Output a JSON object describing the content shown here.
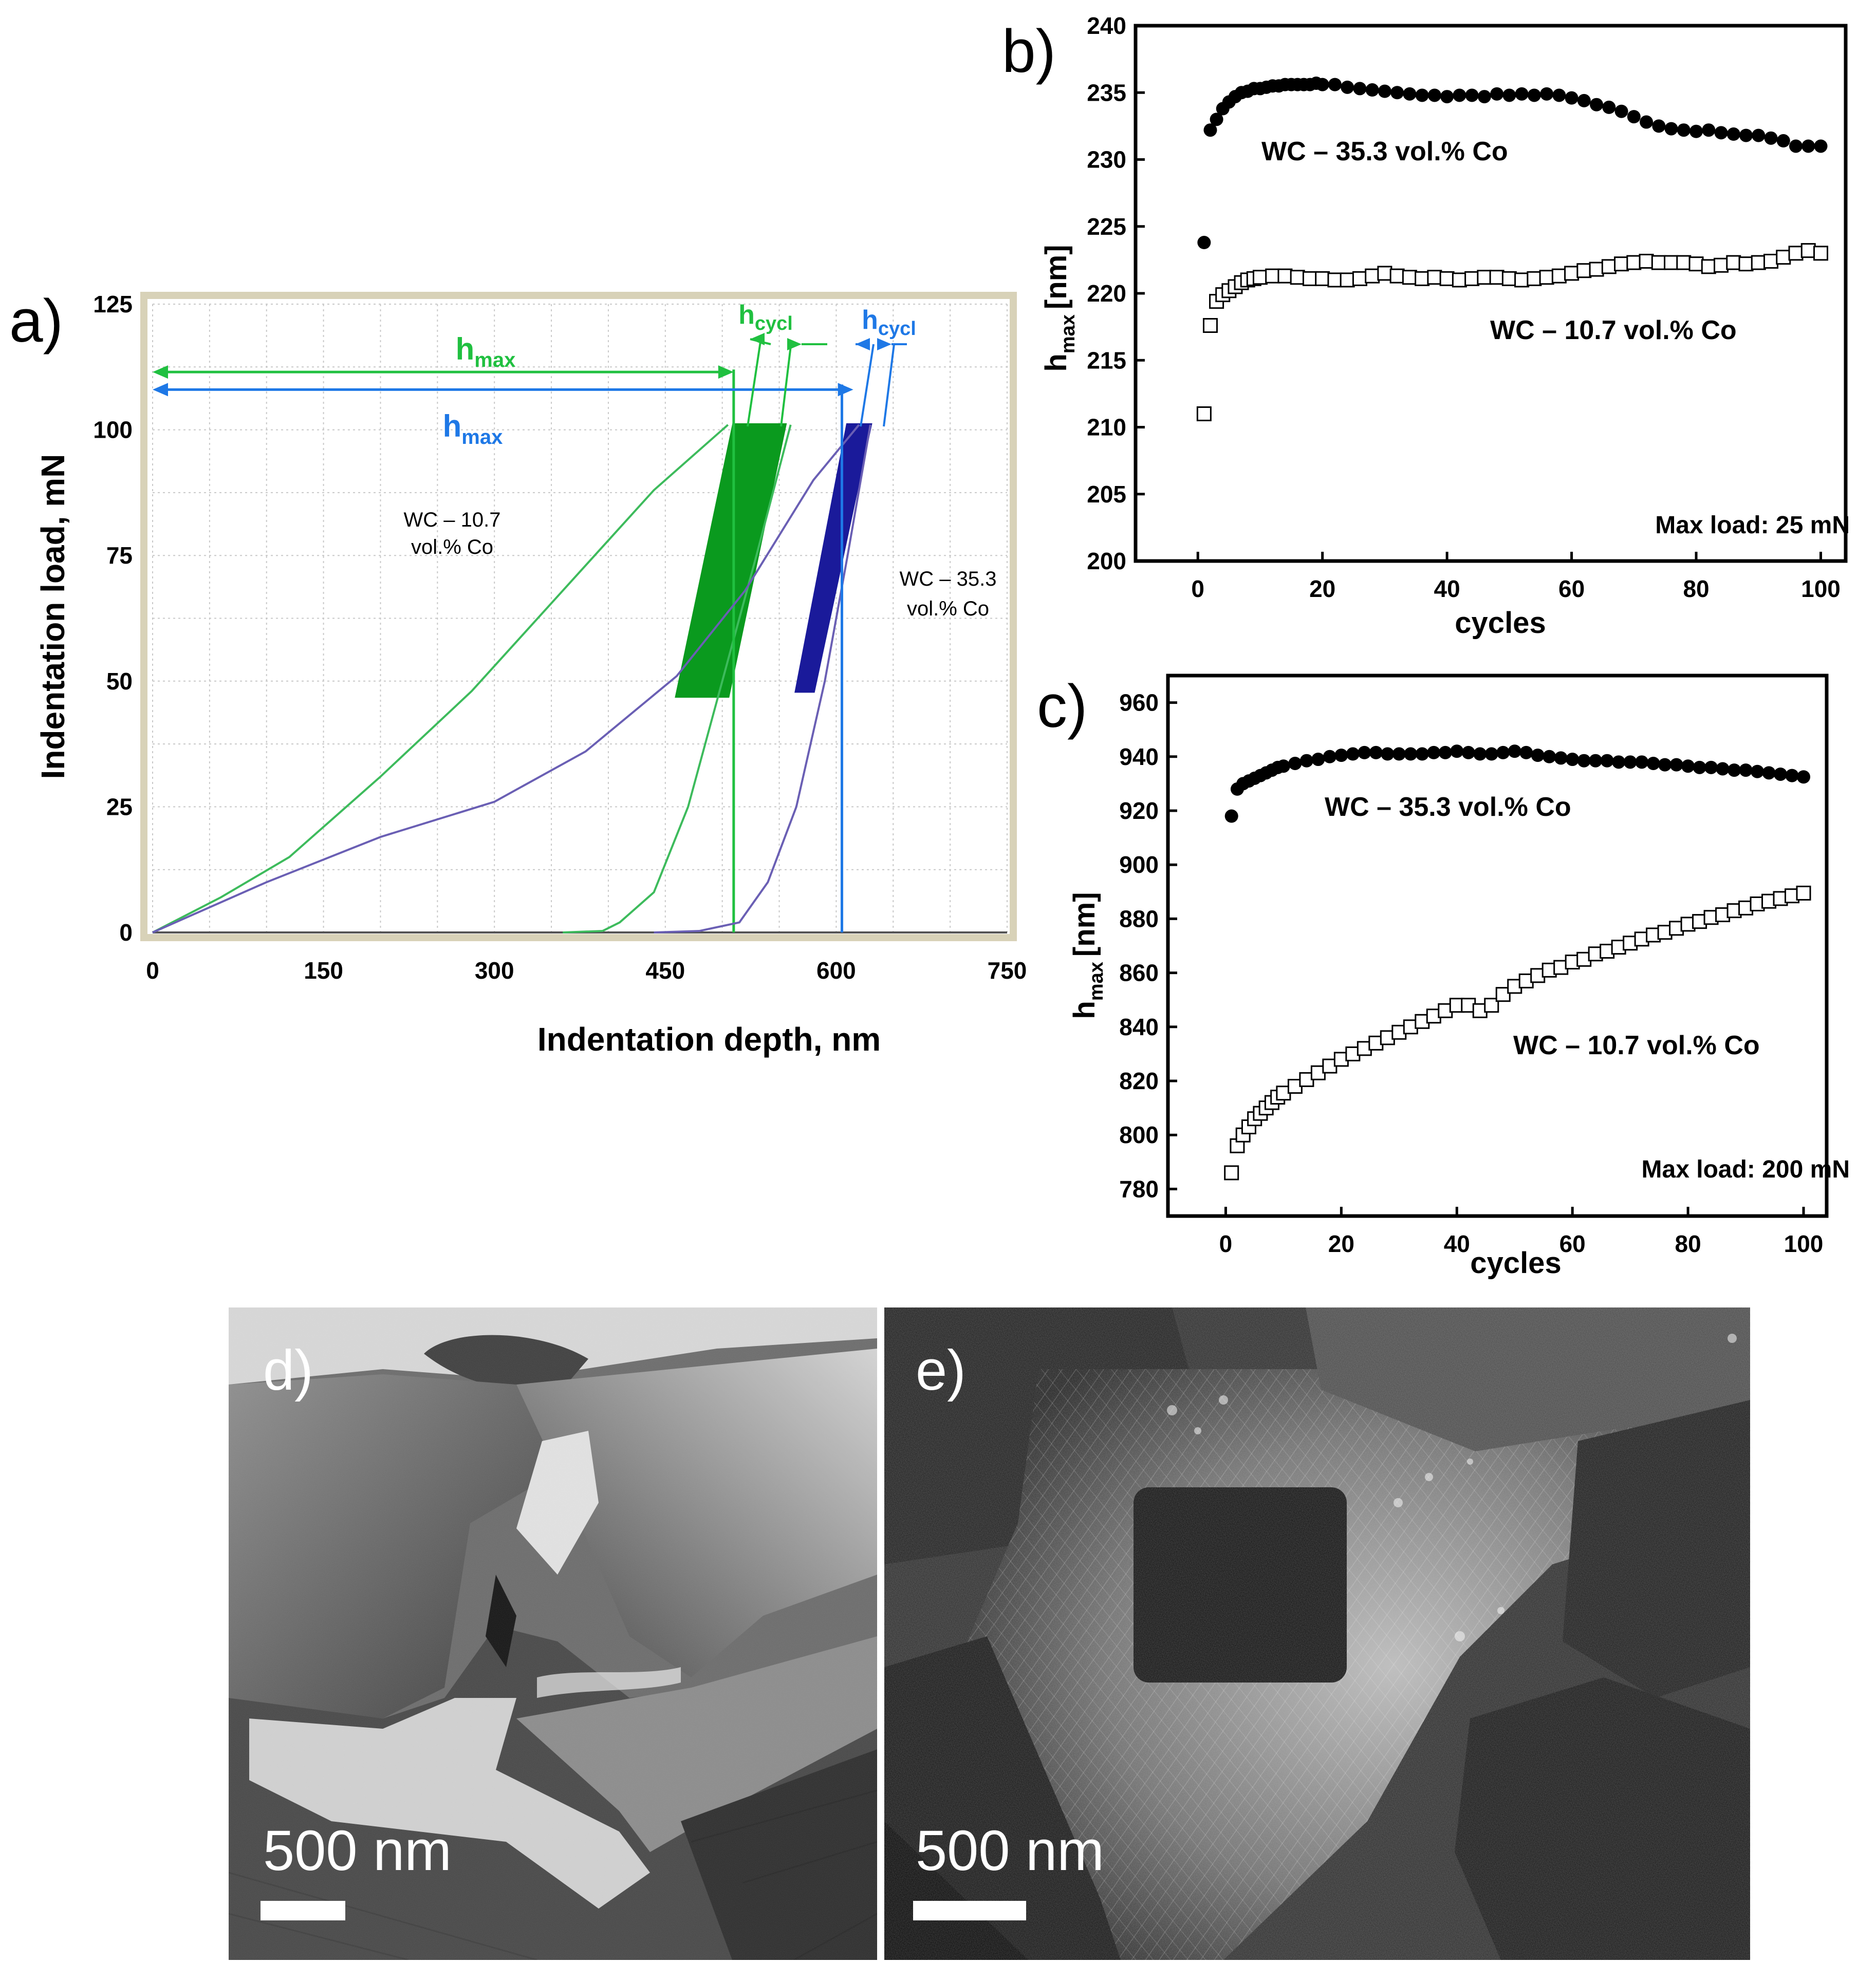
{
  "chart_data": [
    {
      "panel": "a",
      "panel_label": "a)",
      "type": "line",
      "xlabel": "Indentation depth, nm",
      "ylabel": "Indentation load, mN",
      "xlim": [
        0,
        750
      ],
      "ylim": [
        0,
        125
      ],
      "xticks": [
        "0",
        "150",
        "300",
        "450",
        "600",
        "750"
      ],
      "yticks": [
        "0",
        "25",
        "50",
        "75",
        "100",
        "125"
      ],
      "grid": true,
      "series": [
        {
          "name": "WC – 10.7 vol.% Co",
          "label_line1": "WC – 10.7",
          "label_line2": "vol.% Co",
          "color": "#3dbb5c",
          "band_color": "#0a9a1e",
          "loading": [
            [
              0,
              0
            ],
            [
              60,
              7
            ],
            [
              120,
              15
            ],
            [
              200,
              31
            ],
            [
              280,
              48
            ],
            [
              360,
              68
            ],
            [
              440,
              88
            ],
            [
              505,
              101
            ]
          ],
          "unloading": [
            [
              560,
              101
            ],
            [
              530,
              75
            ],
            [
              500,
              50
            ],
            [
              470,
              25
            ],
            [
              440,
              8
            ],
            [
              410,
              2
            ],
            [
              395,
              0.3
            ]
          ],
          "baseline": [
            [
              360,
              0
            ],
            [
              395,
              0.3
            ]
          ],
          "cyclic_band": {
            "x_low": [
              460,
              510
            ],
            "x_high": [
              505,
              555
            ],
            "y": [
              47,
              101
            ]
          },
          "hmax": 510,
          "hmax_label": "h",
          "hmax_sub": "max",
          "hcycl_label": "h",
          "hcycl_sub": "cycl"
        },
        {
          "name": "WC – 35.3 vol.% Co",
          "label_line1": "WC – 35.3",
          "label_line2": "vol.% Co",
          "color": "#6a5fb4",
          "band_color": "#1a1a9a",
          "loading": [
            [
              0,
              0
            ],
            [
              100,
              10
            ],
            [
              200,
              19
            ],
            [
              300,
              26
            ],
            [
              380,
              36
            ],
            [
              460,
              51
            ],
            [
              520,
              68
            ],
            [
              580,
              90
            ],
            [
              620,
              101
            ]
          ],
          "unloading": [
            [
              630,
              101
            ],
            [
              610,
              75
            ],
            [
              590,
              50
            ],
            [
              565,
              25
            ],
            [
              540,
              10
            ],
            [
              515,
              2
            ],
            [
              480,
              0.3
            ]
          ],
          "baseline": [
            [
              440,
              0
            ],
            [
              480,
              0.3
            ]
          ],
          "cyclic_band": {
            "x_low": [
              565,
              610
            ],
            "x_high": [
              580,
              630
            ],
            "y": [
              48,
              101
            ]
          },
          "hmax": 605,
          "hmax_label": "h",
          "hmax_sub": "max",
          "hcycl_label": "h",
          "hcycl_sub": "cycl"
        }
      ]
    },
    {
      "panel": "b",
      "panel_label": "b)",
      "type": "scatter",
      "xlabel": "cycles",
      "ylabel_main": "h",
      "ylabel_sub": "max",
      "ylabel_unit": "[nm]",
      "xlim": [
        -10,
        104
      ],
      "ylim": [
        200,
        240
      ],
      "xticks": [
        0,
        20,
        40,
        60,
        80,
        100
      ],
      "yticks": [
        200,
        205,
        210,
        215,
        220,
        225,
        230,
        235,
        240
      ],
      "note": "Max load: 25 mN",
      "series": [
        {
          "name": "WC – 35.3 vol.% Co",
          "marker": "filled-circle",
          "x": [
            1,
            2,
            3,
            4,
            5,
            6,
            7,
            8,
            9,
            10,
            11,
            12,
            13,
            14,
            15,
            16,
            17,
            18,
            19,
            20,
            22,
            24,
            26,
            28,
            30,
            32,
            34,
            36,
            38,
            40,
            42,
            44,
            46,
            48,
            50,
            52,
            54,
            56,
            58,
            60,
            62,
            64,
            66,
            68,
            70,
            72,
            74,
            76,
            78,
            80,
            82,
            84,
            86,
            88,
            90,
            92,
            94,
            96,
            98,
            100
          ],
          "y": [
            223.8,
            232.2,
            233.0,
            233.8,
            234.3,
            234.7,
            235.0,
            235.1,
            235.3,
            235.3,
            235.4,
            235.5,
            235.5,
            235.6,
            235.6,
            235.6,
            235.6,
            235.6,
            235.7,
            235.6,
            235.6,
            235.4,
            235.3,
            235.2,
            235.1,
            235.0,
            234.9,
            234.8,
            234.8,
            234.7,
            234.8,
            234.8,
            234.7,
            234.9,
            234.8,
            234.9,
            234.8,
            234.9,
            234.8,
            234.6,
            234.4,
            234.1,
            233.9,
            233.6,
            233.2,
            232.8,
            232.5,
            232.3,
            232.2,
            232.1,
            232.2,
            232.0,
            231.9,
            231.8,
            231.8,
            231.6,
            231.4,
            231.0,
            231.0,
            231.0
          ]
        },
        {
          "name": "WC – 10.7 vol.% Co",
          "marker": "open-square",
          "x": [
            1,
            2,
            3,
            4,
            5,
            6,
            7,
            8,
            9,
            10,
            12,
            14,
            16,
            18,
            20,
            22,
            24,
            26,
            28,
            30,
            32,
            34,
            36,
            38,
            40,
            42,
            44,
            46,
            48,
            50,
            52,
            54,
            56,
            58,
            60,
            62,
            64,
            66,
            68,
            70,
            72,
            74,
            76,
            78,
            80,
            82,
            84,
            86,
            88,
            90,
            92,
            94,
            96,
            98,
            100
          ],
          "y": [
            211.0,
            217.6,
            219.4,
            219.9,
            220.2,
            220.5,
            220.8,
            221.0,
            221.1,
            221.2,
            221.3,
            221.3,
            221.2,
            221.1,
            221.1,
            221.0,
            221.0,
            221.1,
            221.3,
            221.5,
            221.3,
            221.2,
            221.1,
            221.2,
            221.1,
            221.0,
            221.1,
            221.2,
            221.2,
            221.1,
            221.0,
            221.1,
            221.2,
            221.3,
            221.5,
            221.7,
            221.8,
            222.0,
            222.2,
            222.3,
            222.4,
            222.3,
            222.3,
            222.3,
            222.2,
            222.0,
            222.1,
            222.3,
            222.2,
            222.3,
            222.4,
            222.7,
            223.0,
            223.2,
            223.0
          ]
        }
      ]
    },
    {
      "panel": "c",
      "panel_label": "c)",
      "type": "scatter",
      "xlabel": "cycles",
      "ylabel_main": "h",
      "ylabel_sub": "max",
      "ylabel_unit": "[nm]",
      "xlim": [
        -10,
        104
      ],
      "ylim": [
        770,
        970
      ],
      "xticks": [
        0,
        20,
        40,
        60,
        80,
        100
      ],
      "yticks": [
        780,
        800,
        820,
        840,
        860,
        880,
        900,
        920,
        940,
        960
      ],
      "note": "Max load: 200 mN",
      "series": [
        {
          "name": "WC – 35.3 vol.% Co",
          "marker": "filled-circle",
          "x": [
            1,
            2,
            3,
            4,
            5,
            6,
            7,
            8,
            9,
            10,
            12,
            14,
            16,
            18,
            20,
            22,
            24,
            26,
            28,
            30,
            32,
            34,
            36,
            38,
            40,
            42,
            44,
            46,
            48,
            50,
            52,
            54,
            56,
            58,
            60,
            62,
            64,
            66,
            68,
            70,
            72,
            74,
            76,
            78,
            80,
            82,
            84,
            86,
            88,
            90,
            92,
            94,
            96,
            98,
            100
          ],
          "y": [
            918,
            928,
            930,
            931,
            932,
            933,
            934,
            935,
            936,
            936.5,
            937.5,
            938.5,
            939,
            940,
            940.5,
            941,
            941.5,
            941.5,
            941,
            941,
            941,
            941,
            941.5,
            941.5,
            942,
            941.5,
            941,
            941,
            941.5,
            942,
            941.5,
            940.5,
            940,
            939.5,
            939,
            938.5,
            938.5,
            938.5,
            938,
            938,
            938,
            937.5,
            937,
            937,
            936.5,
            936,
            936,
            935.5,
            935,
            935,
            934.5,
            934,
            933.5,
            933,
            932.5
          ]
        },
        {
          "name": "WC – 10.7 vol.% Co",
          "marker": "open-square",
          "x": [
            1,
            2,
            3,
            4,
            5,
            6,
            7,
            8,
            9,
            10,
            12,
            14,
            16,
            18,
            20,
            22,
            24,
            26,
            28,
            30,
            32,
            34,
            36,
            38,
            40,
            42,
            44,
            46,
            48,
            50,
            52,
            54,
            56,
            58,
            60,
            62,
            64,
            66,
            68,
            70,
            72,
            74,
            76,
            78,
            80,
            82,
            84,
            86,
            88,
            90,
            92,
            94,
            96,
            98,
            100
          ],
          "y": [
            786,
            796,
            800,
            803,
            806,
            808,
            810,
            812,
            814,
            815.5,
            818,
            820.5,
            823,
            825.5,
            828,
            830,
            832,
            834,
            836,
            838,
            840,
            842,
            844,
            846,
            848,
            848,
            846,
            848,
            852,
            855,
            857,
            859,
            861,
            862,
            864,
            865,
            867,
            868,
            869.5,
            871,
            872.5,
            874,
            875,
            876.5,
            878,
            879,
            880.5,
            881.5,
            883,
            884,
            885.5,
            886.5,
            887.5,
            888.5,
            889.5
          ]
        }
      ]
    }
  ],
  "images": {
    "d": {
      "panel_label": "d)",
      "scale_label": "500 nm"
    },
    "e": {
      "panel_label": "e)",
      "scale_label": "500 nm"
    }
  }
}
